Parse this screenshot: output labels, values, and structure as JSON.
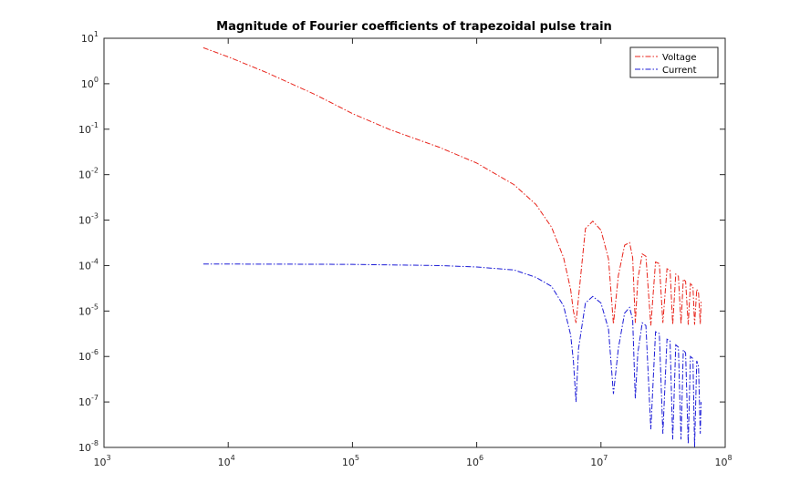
{
  "chart_data": {
    "type": "line",
    "title": "Magnitude of Fourier coefficients of trapezoidal pulse train",
    "xlabel": "",
    "ylabel": "",
    "x_scale": "log",
    "y_scale": "log",
    "xlim": [
      1000,
      100000000
    ],
    "ylim": [
      1e-08,
      10
    ],
    "grid": false,
    "legend": "top-right",
    "x_ticks": [
      {
        "base": "10",
        "exp": "3"
      },
      {
        "base": "10",
        "exp": "4"
      },
      {
        "base": "10",
        "exp": "5"
      },
      {
        "base": "10",
        "exp": "6"
      },
      {
        "base": "10",
        "exp": "7"
      },
      {
        "base": "10",
        "exp": "8"
      }
    ],
    "y_ticks": [
      {
        "base": "10",
        "exp": "-8"
      },
      {
        "base": "10",
        "exp": "-7"
      },
      {
        "base": "10",
        "exp": "-6"
      },
      {
        "base": "10",
        "exp": "-5"
      },
      {
        "base": "10",
        "exp": "-4"
      },
      {
        "base": "10",
        "exp": "-3"
      },
      {
        "base": "10",
        "exp": "-2"
      },
      {
        "base": "10",
        "exp": "-1"
      },
      {
        "base": "10",
        "exp": "0"
      },
      {
        "base": "10",
        "exp": "1"
      }
    ],
    "series": [
      {
        "name": "Voltage",
        "color": "#e8231a",
        "line_style": "dash-dot",
        "x": [
          6300,
          10000,
          20000,
          50000,
          100000,
          200000,
          500000,
          1000000,
          2000000,
          3000000,
          4000000,
          5000000,
          5700000,
          6000000,
          6300000,
          6600000,
          7500000,
          8600000,
          10000000,
          11500000,
          12600000,
          13800000,
          15500000,
          17000000,
          18000000,
          18900000,
          19800000,
          21500000,
          23000000,
          25200000,
          27500000,
          29500000,
          31500000,
          34000000,
          36000000,
          37800000,
          40000000,
          42000000,
          44100000,
          46000000,
          48000000,
          50400000,
          52500000,
          55000000,
          56700000,
          59000000,
          61000000,
          63000000,
          64000000
        ],
        "y": [
          6.2,
          3.9,
          1.8,
          0.58,
          0.22,
          0.098,
          0.04,
          0.018,
          0.006,
          0.0022,
          0.0007,
          0.00015,
          3e-05,
          1e-05,
          5.5e-06,
          2e-05,
          0.00065,
          0.00095,
          0.0006,
          0.00014,
          5.2e-06,
          6e-05,
          0.00028,
          0.00032,
          0.00015,
          5.5e-06,
          5e-05,
          0.00018,
          0.00016,
          4.8e-06,
          0.00012,
          0.00011,
          5.5e-06,
          8.5e-05,
          8e-05,
          5e-06,
          6.5e-05,
          5.8e-05,
          5.2e-06,
          5e-05,
          4.5e-05,
          5e-06,
          4e-05,
          3.5e-05,
          5e-06,
          3e-05,
          2.5e-05,
          5.2e-06,
          1.6e-05
        ]
      },
      {
        "name": "Current",
        "color": "#1a1ad6",
        "line_style": "dash-dot",
        "x": [
          6300,
          10000,
          50000,
          100000,
          500000,
          1000000,
          2000000,
          3000000,
          4000000,
          5000000,
          5700000,
          6000000,
          6300000,
          6600000,
          7500000,
          8600000,
          10000000,
          11500000,
          12600000,
          13800000,
          15500000,
          17000000,
          18000000,
          18900000,
          19800000,
          21500000,
          23000000,
          25200000,
          27500000,
          29500000,
          31500000,
          34000000,
          36000000,
          37800000,
          40000000,
          42000000,
          44100000,
          46000000,
          48000000,
          50400000,
          52500000,
          55000000,
          56700000,
          59000000,
          61000000,
          63000000,
          64000000
        ],
        "y": [
          0.000108,
          0.000108,
          0.000107,
          0.000106,
          0.0001,
          9.3e-05,
          8e-05,
          5.5e-05,
          3.5e-05,
          1.3e-05,
          3e-06,
          8e-07,
          1e-07,
          1.5e-06,
          1.5e-05,
          2.1e-05,
          1.5e-05,
          4e-06,
          1.5e-07,
          1.5e-06,
          9e-06,
          1.2e-05,
          6.5e-06,
          1.2e-07,
          1.2e-06,
          5.5e-06,
          4.8e-06,
          2.5e-08,
          3.5e-06,
          3.2e-06,
          2e-08,
          2.4e-06,
          2.2e-06,
          1.5e-08,
          1.8e-06,
          1.6e-06,
          1.5e-08,
          1.4e-06,
          1.2e-06,
          1.2e-08,
          1e-06,
          9e-07,
          1e-08,
          8e-07,
          6e-07,
          2e-08,
          1e-07
        ]
      }
    ]
  }
}
